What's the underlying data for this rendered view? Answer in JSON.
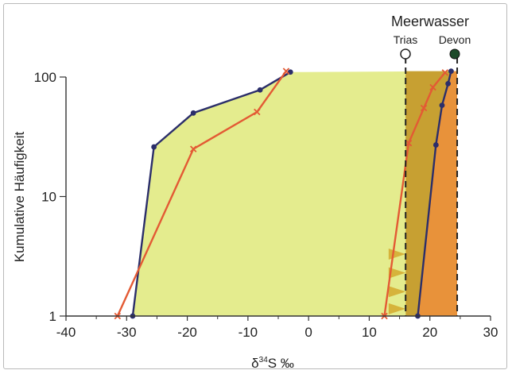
{
  "chart_data": {
    "type": "line",
    "title": "",
    "xlabel_prefix": "δ",
    "xlabel_sup": "34",
    "xlabel_rest": "S ‰",
    "ylabel": "Kumulative Häufigkeit",
    "xlim": [
      -40,
      30
    ],
    "ylim": [
      1,
      100
    ],
    "yscale": "log",
    "xticks": [
      -40,
      -30,
      -20,
      -10,
      0,
      10,
      20,
      30
    ],
    "yticks": [
      1,
      10,
      100
    ],
    "grid": false,
    "colors": {
      "field_fill": "#e4ec8e",
      "band_dark": "#c7a032",
      "band_orange": "#e8923a",
      "navy": "#2b2e6a",
      "red": "#e35a34",
      "triangles": "#d6b33b",
      "seawater_line": "#222222"
    },
    "series": [
      {
        "color": "#2b2e6a",
        "marker": "dot",
        "x": [
          -29,
          -25.5,
          -19,
          -8,
          -3
        ],
        "y": [
          1,
          26,
          50,
          78,
          110
        ]
      },
      {
        "color": "#e35a34",
        "marker": "x",
        "x": [
          -31.5,
          -19,
          -8.5,
          -3.7
        ],
        "y": [
          1,
          25,
          51,
          112
        ]
      },
      {
        "color": "#2b2e6a",
        "marker": "dot",
        "x": [
          18,
          21,
          22,
          23,
          23.5
        ],
        "y": [
          1,
          27,
          58,
          88,
          112
        ]
      },
      {
        "color": "#e35a34",
        "marker": "x",
        "x": [
          12.5,
          16.5,
          19,
          20.5,
          22.5
        ],
        "y": [
          1,
          28,
          55,
          82,
          109
        ]
      }
    ],
    "seawater": {
      "title": "Meerwasser",
      "trias": {
        "label": "Trias",
        "x": 16,
        "marker": "open-circle"
      },
      "devon": {
        "label": "Devon",
        "x": 24.5,
        "marker": "filled-circle"
      }
    }
  }
}
